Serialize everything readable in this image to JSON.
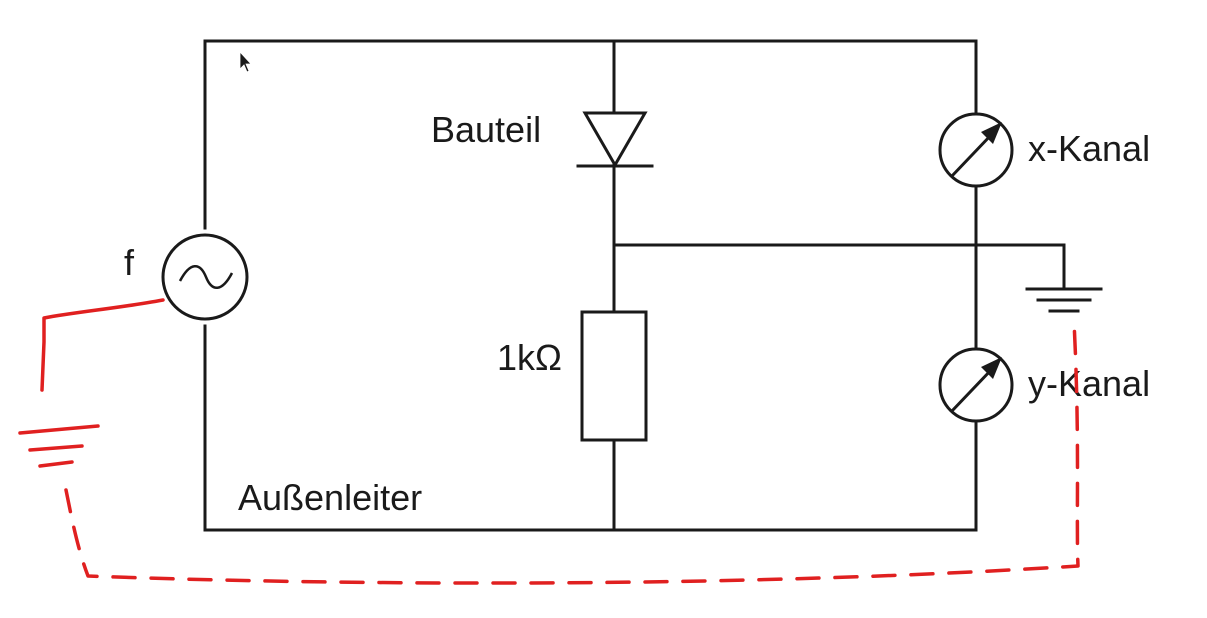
{
  "labels": {
    "source": "f",
    "component": "Bauteil",
    "resistor": "1kΩ",
    "x_channel": "x-Kanal",
    "y_channel": "y-Kanal",
    "outer_conductor": "Außenleiter"
  },
  "colors": {
    "wire": "#1a1a1a",
    "annotation": "#e02020"
  },
  "icons": {
    "source": "ac-source-icon",
    "component": "diode-icon",
    "resistor": "resistor-icon",
    "meters": "meter-icon",
    "ground": "ground-icon",
    "cursor": "mouse-cursor-icon"
  }
}
